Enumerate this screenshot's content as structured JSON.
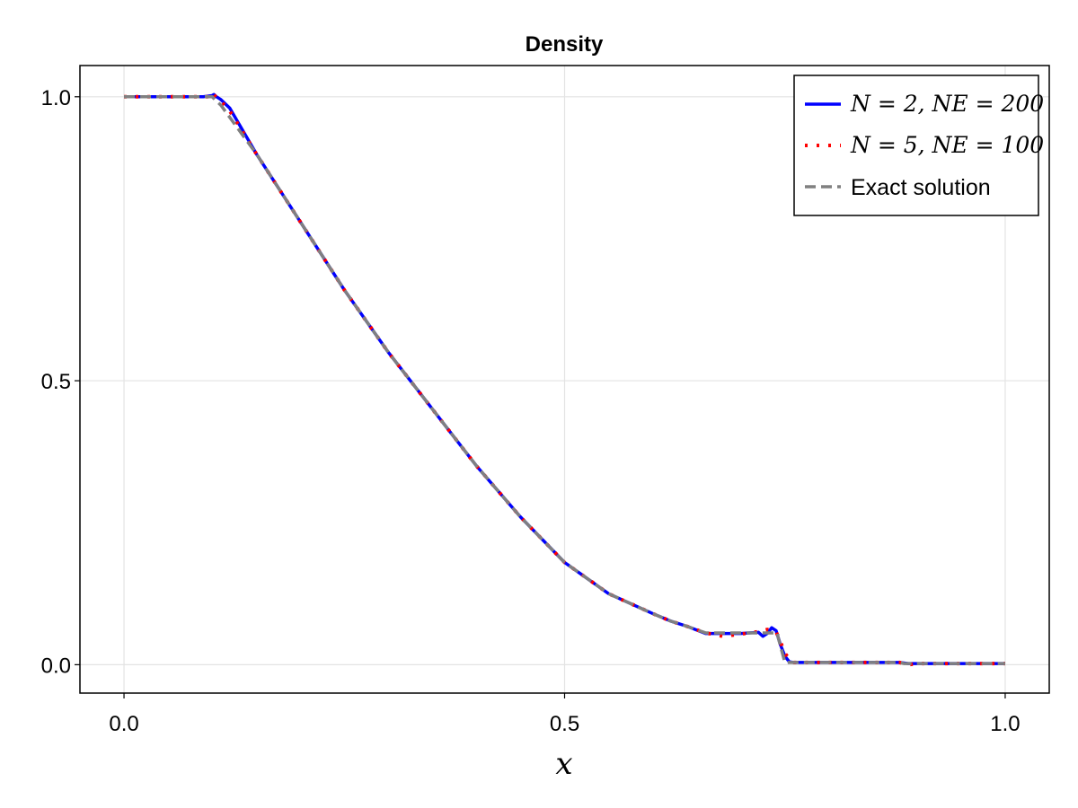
{
  "chart_data": {
    "type": "line",
    "title": "Density",
    "xlabel": "x",
    "ylabel": "",
    "xlim": [
      -0.05,
      1.05
    ],
    "ylim": [
      -0.05,
      1.055
    ],
    "xticks": [
      0.0,
      0.5,
      1.0
    ],
    "xtick_labels": [
      "0.0",
      "0.5",
      "1.0"
    ],
    "yticks": [
      0.0,
      0.5,
      1.0
    ],
    "ytick_labels": [
      "0.0",
      "0.5",
      "1.0"
    ],
    "grid": true,
    "legend_position": "top-right",
    "series": [
      {
        "name": "N = 2, NE = 200",
        "color": "#0000ff",
        "style": "solid",
        "x": [
          0.0,
          0.05,
          0.09,
          0.1,
          0.102,
          0.105,
          0.11,
          0.12,
          0.15,
          0.2,
          0.25,
          0.3,
          0.35,
          0.4,
          0.45,
          0.5,
          0.55,
          0.6,
          0.62,
          0.64,
          0.66,
          0.68,
          0.7,
          0.72,
          0.725,
          0.73,
          0.735,
          0.74,
          0.745,
          0.75,
          0.755,
          0.76,
          0.8,
          0.85,
          0.88,
          0.89,
          0.9,
          0.95,
          1.0
        ],
        "y": [
          1.0,
          1.0,
          1.0,
          1.002,
          1.004,
          1.0,
          0.995,
          0.98,
          0.9,
          0.78,
          0.66,
          0.55,
          0.45,
          0.35,
          0.26,
          0.18,
          0.125,
          0.09,
          0.077,
          0.067,
          0.055,
          0.055,
          0.055,
          0.057,
          0.05,
          0.055,
          0.065,
          0.06,
          0.035,
          0.015,
          0.005,
          0.004,
          0.004,
          0.004,
          0.004,
          0.002,
          0.002,
          0.002,
          0.002
        ]
      },
      {
        "name": "N = 5, NE = 100",
        "color": "#ff0000",
        "style": "dotted",
        "x": [
          0.0,
          0.05,
          0.095,
          0.1,
          0.105,
          0.11,
          0.12,
          0.15,
          0.2,
          0.25,
          0.3,
          0.35,
          0.4,
          0.45,
          0.5,
          0.55,
          0.6,
          0.62,
          0.64,
          0.66,
          0.68,
          0.7,
          0.71,
          0.72,
          0.73,
          0.74,
          0.745,
          0.75,
          0.755,
          0.76,
          0.8,
          0.85,
          0.88,
          0.89,
          0.9,
          0.95,
          1.0
        ],
        "y": [
          1.0,
          1.0,
          1.0,
          1.008,
          0.998,
          0.992,
          0.975,
          0.9,
          0.78,
          0.66,
          0.55,
          0.45,
          0.35,
          0.26,
          0.18,
          0.125,
          0.09,
          0.077,
          0.067,
          0.056,
          0.05,
          0.054,
          0.056,
          0.058,
          0.062,
          0.058,
          0.04,
          0.02,
          0.01,
          0.004,
          0.004,
          0.004,
          0.004,
          0.0,
          0.002,
          0.002,
          0.002
        ]
      },
      {
        "name": "Exact solution",
        "color": "#808080",
        "style": "dashed",
        "x": [
          0.0,
          0.05,
          0.1,
          0.11,
          0.15,
          0.2,
          0.25,
          0.3,
          0.35,
          0.4,
          0.45,
          0.5,
          0.55,
          0.6,
          0.62,
          0.64,
          0.66,
          0.7,
          0.742,
          0.742,
          0.75,
          0.77,
          0.8,
          0.85,
          0.88,
          0.885,
          0.9,
          0.95,
          1.0
        ],
        "y": [
          1.0,
          1.0,
          1.0,
          0.985,
          0.9,
          0.78,
          0.66,
          0.55,
          0.45,
          0.35,
          0.26,
          0.18,
          0.125,
          0.09,
          0.077,
          0.067,
          0.056,
          0.056,
          0.056,
          0.05,
          0.004,
          0.004,
          0.004,
          0.004,
          0.004,
          0.002,
          0.002,
          0.002,
          0.002
        ]
      }
    ]
  }
}
